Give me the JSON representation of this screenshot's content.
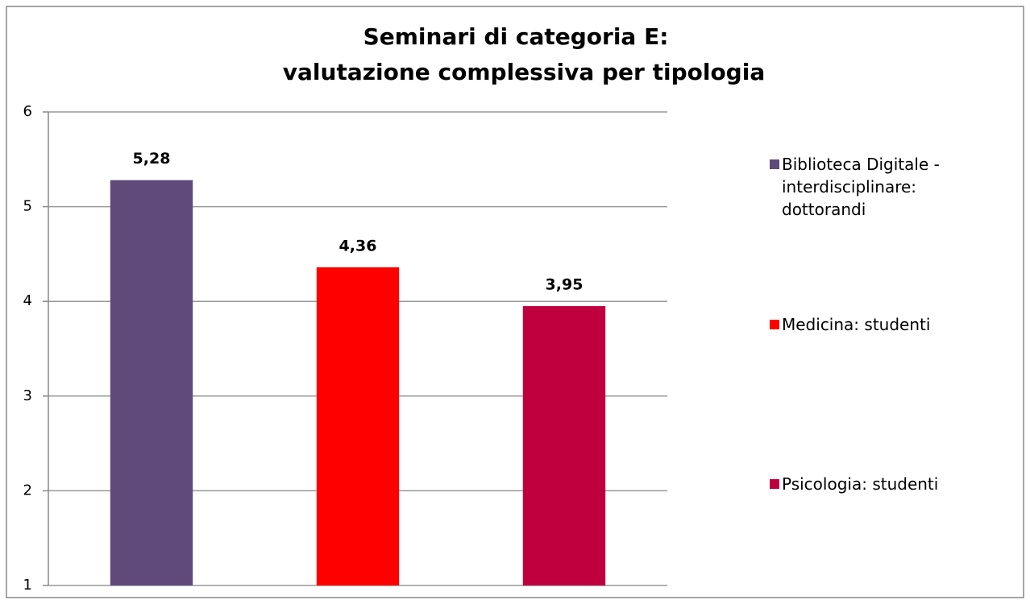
{
  "chart_data": {
    "type": "bar",
    "title": [
      "Seminari di categoria E:",
      "valutazione complessiva per tipologia"
    ],
    "categories": [
      null
    ],
    "series": [
      {
        "name": "Biblioteca Digitale - interdisciplinare: dottorandi",
        "color": "#604a7b",
        "values": [
          5.28
        ],
        "value_labels": [
          "5,28"
        ]
      },
      {
        "name": "Medicina: studenti",
        "color": "#ff0000",
        "values": [
          4.36
        ],
        "value_labels": [
          "4,36"
        ]
      },
      {
        "name": "Psicologia: studenti",
        "color": "#c0003e",
        "values": [
          3.95
        ],
        "value_labels": [
          "3,95"
        ]
      }
    ],
    "ylim": [
      1,
      6
    ],
    "yticks": [
      1,
      2,
      3,
      4,
      5,
      6
    ],
    "grid": true,
    "legend": "right"
  }
}
